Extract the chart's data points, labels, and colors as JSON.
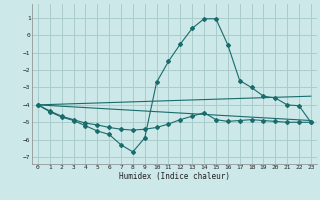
{
  "xlabel": "Humidex (Indice chaleur)",
  "bg_color": "#cce8e8",
  "grid_color": "#aacccc",
  "line_color": "#1a6b6b",
  "xlim": [
    -0.5,
    23.5
  ],
  "ylim": [
    -7.4,
    1.8
  ],
  "yticks": [
    1,
    0,
    -1,
    -2,
    -3,
    -4,
    -5,
    -6,
    -7
  ],
  "xticks": [
    0,
    1,
    2,
    3,
    4,
    5,
    6,
    7,
    8,
    9,
    10,
    11,
    12,
    13,
    14,
    15,
    16,
    17,
    18,
    19,
    20,
    21,
    22,
    23
  ],
  "line1_x": [
    0,
    1,
    2,
    3,
    4,
    5,
    6,
    7,
    8,
    9,
    10,
    11,
    12,
    13,
    14,
    15,
    16,
    17,
    18,
    19,
    20,
    21,
    22,
    23
  ],
  "line1_y": [
    -4.0,
    -4.4,
    -4.7,
    -4.9,
    -5.2,
    -5.5,
    -5.7,
    -6.3,
    -6.7,
    -5.9,
    -2.7,
    -1.5,
    -0.5,
    0.4,
    0.95,
    0.95,
    -0.55,
    -2.6,
    -3.0,
    -3.5,
    -3.6,
    -4.0,
    -4.05,
    -5.0
  ],
  "line2_x": [
    0,
    1,
    2,
    3,
    4,
    5,
    6,
    7,
    8,
    9,
    10,
    11,
    12,
    13,
    14,
    15,
    16,
    17,
    18,
    19,
    20,
    21,
    22,
    23
  ],
  "line2_y": [
    -4.0,
    -4.35,
    -4.65,
    -4.85,
    -5.05,
    -5.15,
    -5.3,
    -5.4,
    -5.45,
    -5.4,
    -5.3,
    -5.1,
    -4.85,
    -4.65,
    -4.45,
    -4.85,
    -4.95,
    -4.9,
    -4.85,
    -4.9,
    -4.95,
    -5.0,
    -5.0,
    -5.0
  ],
  "line3_x": [
    0,
    23
  ],
  "line3_y": [
    -4.0,
    -3.5
  ],
  "line4_x": [
    0,
    23
  ],
  "line4_y": [
    -4.0,
    -4.9
  ]
}
